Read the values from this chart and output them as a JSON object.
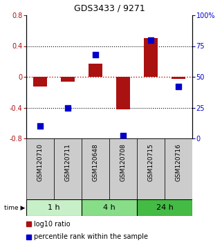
{
  "title": "GDS3433 / 9271",
  "samples": [
    "GSM120710",
    "GSM120711",
    "GSM120648",
    "GSM120708",
    "GSM120715",
    "GSM120716"
  ],
  "log10_ratio": [
    -0.13,
    -0.06,
    0.17,
    -0.42,
    0.5,
    -0.03
  ],
  "percentile_rank": [
    10,
    25,
    68,
    2,
    80,
    42
  ],
  "time_groups": [
    {
      "label": "1 h",
      "samples": 2,
      "color": "#c8f0c8"
    },
    {
      "label": "4 h",
      "samples": 2,
      "color": "#88dd88"
    },
    {
      "label": "24 h",
      "samples": 2,
      "color": "#44bb44"
    }
  ],
  "ylim_left": [
    -0.8,
    0.8
  ],
  "ylim_right": [
    0,
    100
  ],
  "bar_color": "#aa1111",
  "dot_color": "#0000cc",
  "background_color": "#ffffff",
  "label_bg_color": "#cccccc",
  "dotted_line_color": "#000000",
  "zero_line_color": "#cc0000",
  "yticks_left": [
    -0.8,
    -0.4,
    0.0,
    0.4,
    0.8
  ],
  "yticks_right": [
    0,
    25,
    50,
    75,
    100
  ],
  "ytick_labels_left": [
    "-0.8",
    "-0.4",
    "0",
    "0.4",
    "0.8"
  ],
  "ytick_labels_right": [
    "0",
    "25",
    "50",
    "75",
    "100%"
  ],
  "bar_width": 0.5,
  "dot_marker_size": 40
}
